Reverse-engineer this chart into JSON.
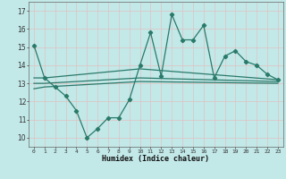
{
  "title": "",
  "xlabel": "Humidex (Indice chaleur)",
  "ylabel": "",
  "background_color": "#c2e8e8",
  "line_color": "#2a7a6a",
  "xlim": [
    -0.5,
    23.5
  ],
  "ylim": [
    9.5,
    17.5
  ],
  "yticks": [
    10,
    11,
    12,
    13,
    14,
    15,
    16,
    17
  ],
  "xticks": [
    0,
    1,
    2,
    3,
    4,
    5,
    6,
    7,
    8,
    9,
    10,
    11,
    12,
    13,
    14,
    15,
    16,
    17,
    18,
    19,
    20,
    21,
    22,
    23
  ],
  "series": [
    {
      "x": [
        0,
        1,
        2,
        3,
        4,
        5,
        6,
        7,
        8,
        9,
        10,
        11,
        12,
        13,
        14,
        15,
        16,
        17,
        18,
        19,
        20,
        21,
        22,
        23
      ],
      "y": [
        15.1,
        13.3,
        12.8,
        12.3,
        11.5,
        10.0,
        10.5,
        11.1,
        11.1,
        12.1,
        14.0,
        15.8,
        13.4,
        16.8,
        15.4,
        15.4,
        16.2,
        13.3,
        14.5,
        14.8,
        14.2,
        14.0,
        13.5,
        13.2
      ],
      "marker": true
    },
    {
      "x": [
        0,
        1,
        10,
        23
      ],
      "y": [
        13.3,
        13.3,
        13.8,
        13.2
      ],
      "marker": false
    },
    {
      "x": [
        0,
        1,
        10,
        23
      ],
      "y": [
        13.0,
        13.0,
        13.3,
        13.1
      ],
      "marker": false
    },
    {
      "x": [
        0,
        1,
        10,
        23
      ],
      "y": [
        12.7,
        12.8,
        13.1,
        13.0
      ],
      "marker": false
    }
  ]
}
